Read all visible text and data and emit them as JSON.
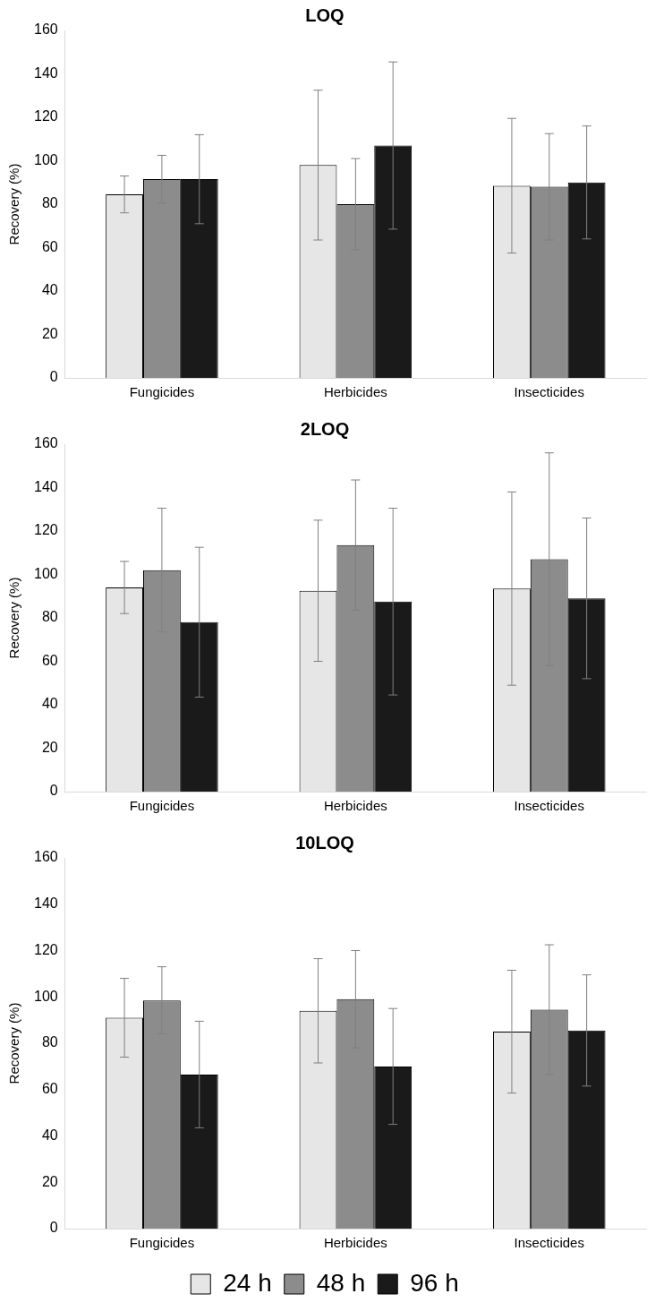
{
  "chart_data": [
    {
      "type": "bar",
      "title": "LOQ",
      "ylabel": "Recovery (%)",
      "categories": [
        "Fungicides",
        "Herbicides",
        "Insecticides"
      ],
      "ylim": [
        0,
        160
      ],
      "yticks": [
        0,
        20,
        40,
        60,
        80,
        100,
        120,
        140,
        160
      ],
      "grid": false,
      "legend": false,
      "series": [
        {
          "color": "#e6e6e6",
          "values": [
            84.5,
            98,
            88.5
          ],
          "errors": [
            8.5,
            34.5,
            31
          ]
        },
        {
          "color": "#8c8c8c",
          "values": [
            91.5,
            80,
            88
          ],
          "errors": [
            11,
            21,
            24.5
          ]
        },
        {
          "color": "#1a1a1a",
          "values": [
            91.5,
            107,
            90
          ],
          "errors": [
            20.5,
            38.5,
            26
          ]
        }
      ]
    },
    {
      "type": "bar",
      "title": "2LOQ",
      "ylabel": "Recovery (%)",
      "categories": [
        "Fungicides",
        "Herbicides",
        "Insecticides"
      ],
      "ylim": [
        0,
        160
      ],
      "yticks": [
        0,
        20,
        40,
        60,
        80,
        100,
        120,
        140,
        160
      ],
      "grid": false,
      "legend": false,
      "series": [
        {
          "color": "#e6e6e6",
          "values": [
            94,
            92.5,
            93.5
          ],
          "errors": [
            12,
            32.5,
            44.5
          ]
        },
        {
          "color": "#8c8c8c",
          "values": [
            102,
            113.5,
            107
          ],
          "errors": [
            28.5,
            30,
            49
          ]
        },
        {
          "color": "#1a1a1a",
          "values": [
            78,
            87.5,
            89
          ],
          "errors": [
            34.5,
            43,
            37
          ]
        }
      ]
    },
    {
      "type": "bar",
      "title": "10LOQ",
      "ylabel": "Recovery (%)",
      "categories": [
        "Fungicides",
        "Herbicides",
        "Insecticides"
      ],
      "ylim": [
        0,
        160
      ],
      "yticks": [
        0,
        20,
        40,
        60,
        80,
        100,
        120,
        140,
        160
      ],
      "grid": false,
      "legend": "bottom",
      "series": [
        {
          "name": "24 h",
          "color": "#e6e6e6",
          "values": [
            91,
            94,
            85
          ],
          "errors": [
            17,
            22.5,
            26.5
          ]
        },
        {
          "name": "48 h",
          "color": "#8c8c8c",
          "values": [
            98.5,
            99,
            94.5
          ],
          "errors": [
            14.5,
            21,
            28
          ]
        },
        {
          "name": "96 h",
          "color": "#1a1a1a",
          "values": [
            66.5,
            70,
            85.5
          ],
          "errors": [
            23,
            25,
            24
          ]
        }
      ]
    }
  ]
}
